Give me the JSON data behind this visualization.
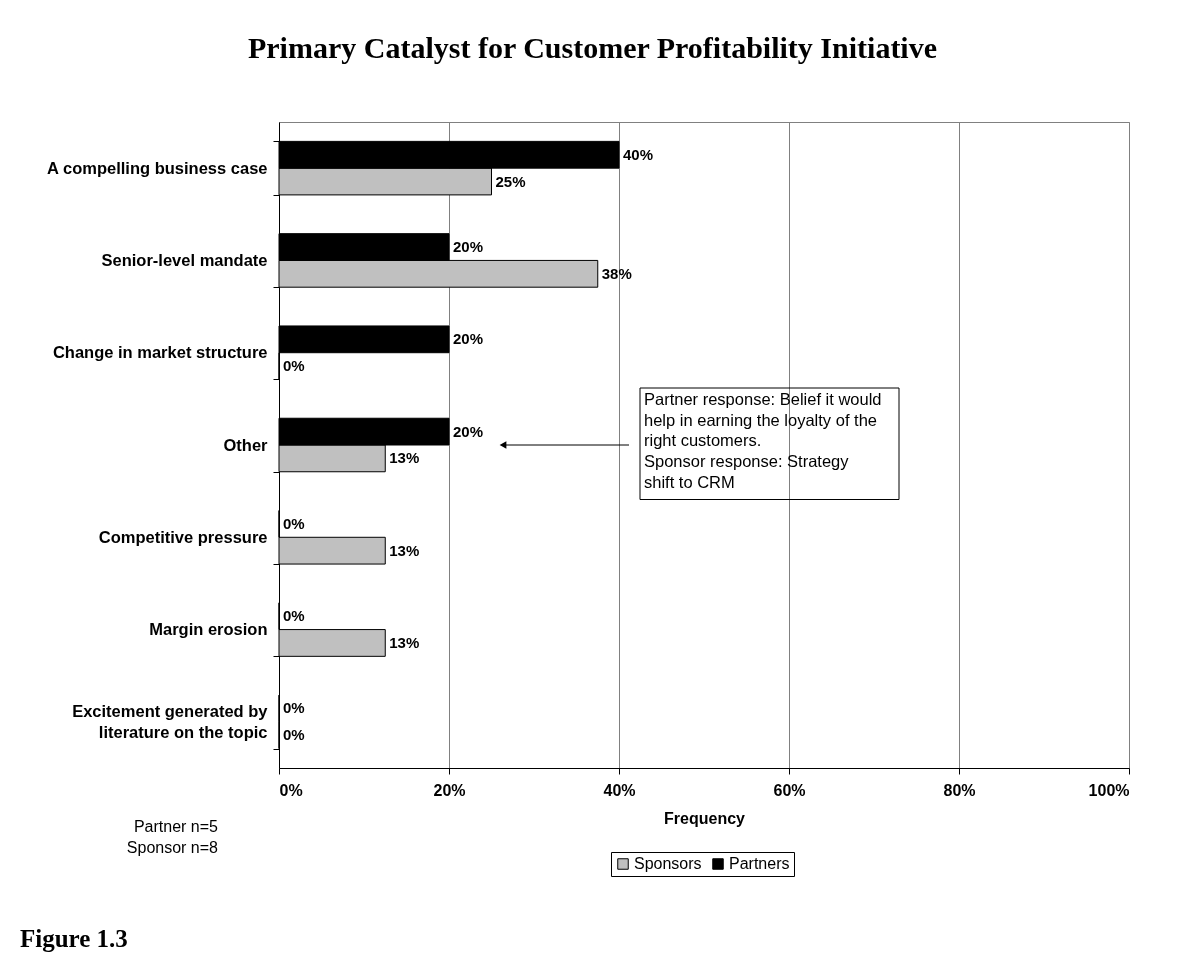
{
  "chart_data": {
    "type": "bar",
    "orientation": "horizontal",
    "title": "Primary Catalyst for Customer Profitability Initiative",
    "xlabel": "Frequency",
    "categories": [
      "A compelling business case",
      "Senior-level mandate",
      "Change in market structure",
      "Other",
      "Competitive pressure",
      "Margin erosion",
      "Excitement generated by literature on the topic"
    ],
    "series": [
      {
        "name": "Sponsors",
        "color": "#c0c0c0",
        "values": [
          25,
          37.5,
          0,
          12.5,
          12.5,
          12.5,
          0
        ],
        "value_labels": [
          "25%",
          "38%",
          "0%",
          "13%",
          "13%",
          "13%",
          "0%"
        ]
      },
      {
        "name": "Partners",
        "color": "#000000",
        "values": [
          40,
          20,
          20,
          20,
          0,
          0,
          0
        ],
        "value_labels": [
          "40%",
          "20%",
          "20%",
          "20%",
          "0%",
          "0%",
          "0%"
        ]
      }
    ],
    "xlim": [
      0,
      100
    ],
    "xticks": [
      {
        "value": 0,
        "label": "0%"
      },
      {
        "value": 20,
        "label": "20%"
      },
      {
        "value": 40,
        "label": "40%"
      },
      {
        "value": 60,
        "label": "60%"
      },
      {
        "value": 80,
        "label": "80%"
      },
      {
        "value": 100,
        "label": "100%"
      }
    ],
    "grid": "x",
    "legend": "bottom",
    "annotations": [
      "Partner response: Belief it would\nhelp in earning the loyalty of the\nright customers.\nSponsor response: Strategy\nshift to CRM",
      "Partner n=5",
      "Sponsor n=8",
      "Figure 1.3"
    ]
  }
}
